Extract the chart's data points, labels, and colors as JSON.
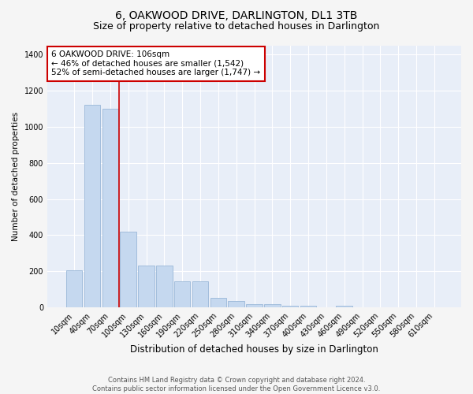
{
  "title": "6, OAKWOOD DRIVE, DARLINGTON, DL1 3TB",
  "subtitle": "Size of property relative to detached houses in Darlington",
  "xlabel": "Distribution of detached houses by size in Darlington",
  "ylabel": "Number of detached properties",
  "categories": [
    "10sqm",
    "40sqm",
    "70sqm",
    "100sqm",
    "130sqm",
    "160sqm",
    "190sqm",
    "220sqm",
    "250sqm",
    "280sqm",
    "310sqm",
    "340sqm",
    "370sqm",
    "400sqm",
    "430sqm",
    "460sqm",
    "490sqm",
    "520sqm",
    "550sqm",
    "580sqm",
    "610sqm"
  ],
  "values": [
    205,
    1120,
    1100,
    420,
    230,
    230,
    145,
    145,
    55,
    35,
    20,
    20,
    10,
    10,
    0,
    10,
    0,
    0,
    0,
    0,
    0
  ],
  "bar_color": "#c5d8ef",
  "bar_edge_color": "#9ab8d8",
  "annotation_text_line1": "6 OAKWOOD DRIVE: 106sqm",
  "annotation_text_line2": "← 46% of detached houses are smaller (1,542)",
  "annotation_text_line3": "52% of semi-detached houses are larger (1,747) →",
  "red_line_color": "#cc0000",
  "annotation_box_color": "#ffffff",
  "annotation_box_edge_color": "#cc0000",
  "ylim": [
    0,
    1450
  ],
  "yticks": [
    0,
    200,
    400,
    600,
    800,
    1000,
    1200,
    1400
  ],
  "axes_bg_color": "#e8eef8",
  "fig_bg_color": "#f5f5f5",
  "grid_color": "#ffffff",
  "footer_line1": "Contains HM Land Registry data © Crown copyright and database right 2024.",
  "footer_line2": "Contains public sector information licensed under the Open Government Licence v3.0.",
  "title_fontsize": 10,
  "subtitle_fontsize": 9,
  "xlabel_fontsize": 8.5,
  "ylabel_fontsize": 7.5,
  "tick_fontsize": 7,
  "footer_fontsize": 6,
  "annot_fontsize": 7.5
}
